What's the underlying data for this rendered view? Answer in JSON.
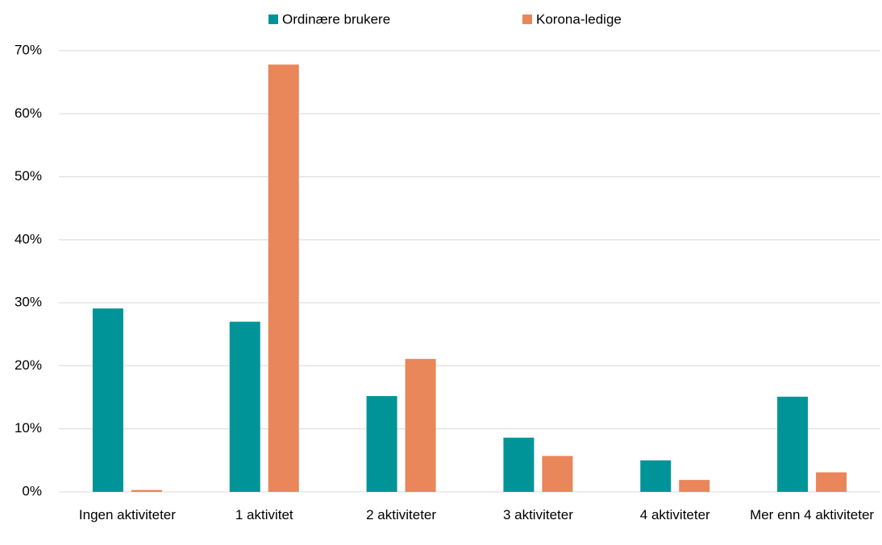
{
  "chart_data": {
    "type": "bar",
    "categories": [
      "Ingen aktiviteter",
      "1 aktivitet",
      "2 aktiviteter",
      "3 aktiviteter",
      "4 aktiviteter",
      "Mer enn 4 aktiviteter"
    ],
    "series": [
      {
        "name": "Ordinære brukere",
        "color": "#009499",
        "values": [
          29.1,
          27,
          15.2,
          8.6,
          5,
          15.1
        ]
      },
      {
        "name": "Korona-ledige",
        "color": "#e9865a",
        "values": [
          0.3,
          67.8,
          21.1,
          5.7,
          1.9,
          3.1
        ]
      }
    ],
    "ylim": [
      0,
      70
    ],
    "yticks": [
      {
        "value": 0,
        "label": "0%"
      },
      {
        "value": 10,
        "label": "10%"
      },
      {
        "value": 20,
        "label": "20%"
      },
      {
        "value": 30,
        "label": "30%"
      },
      {
        "value": 40,
        "label": "40%"
      },
      {
        "value": 50,
        "label": "50%"
      },
      {
        "value": 60,
        "label": "60%"
      },
      {
        "value": 70,
        "label": "70%"
      }
    ],
    "grid": true,
    "legend": "top"
  }
}
